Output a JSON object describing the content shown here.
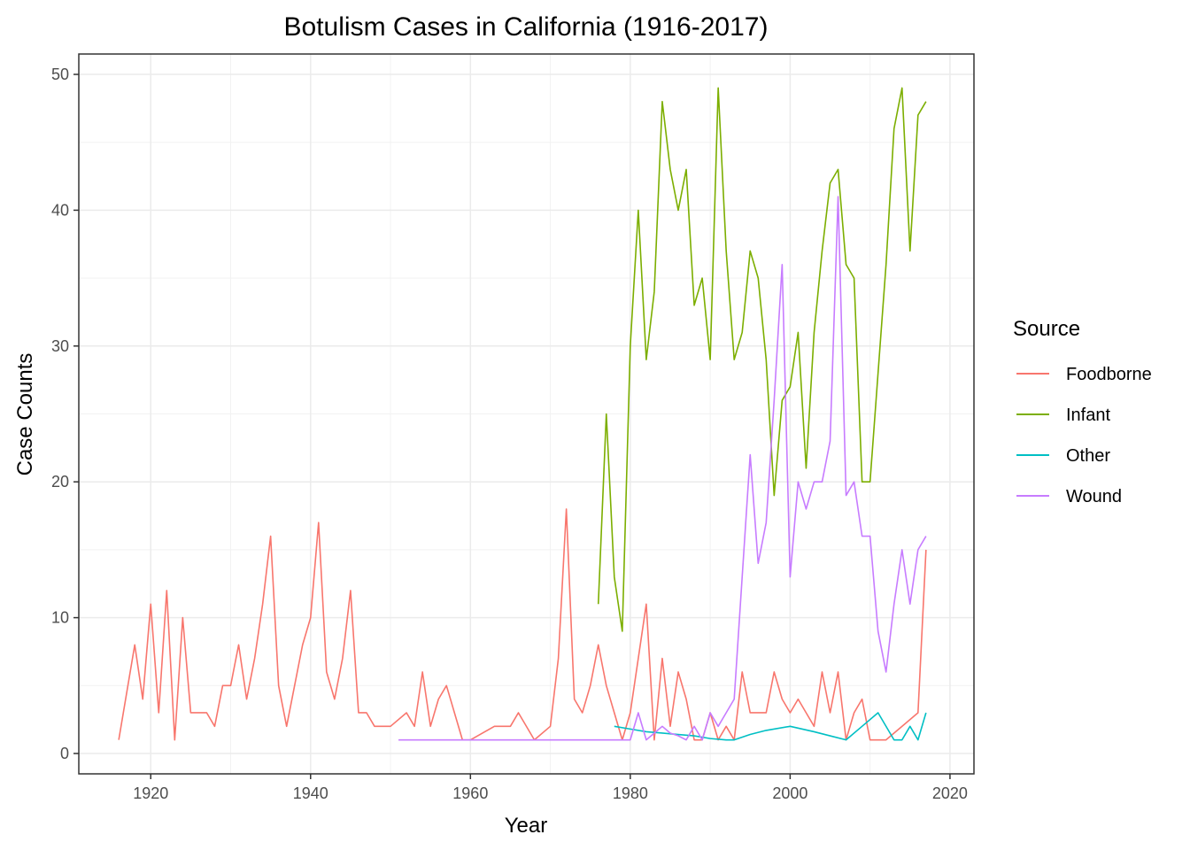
{
  "chart_data": {
    "type": "line",
    "title": "Botulism Cases in California (1916-2017)",
    "xlabel": "Year",
    "ylabel": "Case Counts",
    "xlim": [
      1911,
      2023
    ],
    "ylim": [
      -1.5,
      51.5
    ],
    "x_ticks": [
      1920,
      1940,
      1960,
      1980,
      2000,
      2020
    ],
    "y_ticks": [
      0,
      10,
      20,
      30,
      40,
      50
    ],
    "grid": true,
    "legend": {
      "title": "Source",
      "position": "right"
    },
    "series": [
      {
        "name": "Foodborne",
        "color": "#F8766D",
        "points": [
          [
            1916,
            1
          ],
          [
            1918,
            8
          ],
          [
            1919,
            4
          ],
          [
            1920,
            11
          ],
          [
            1921,
            3
          ],
          [
            1922,
            12
          ],
          [
            1923,
            1
          ],
          [
            1924,
            10
          ],
          [
            1925,
            3
          ],
          [
            1926,
            3
          ],
          [
            1927,
            3
          ],
          [
            1928,
            2
          ],
          [
            1929,
            5
          ],
          [
            1930,
            5
          ],
          [
            1931,
            8
          ],
          [
            1932,
            4
          ],
          [
            1933,
            7
          ],
          [
            1934,
            11
          ],
          [
            1935,
            16
          ],
          [
            1936,
            5
          ],
          [
            1937,
            2
          ],
          [
            1938,
            5
          ],
          [
            1939,
            8
          ],
          [
            1940,
            10
          ],
          [
            1941,
            17
          ],
          [
            1942,
            6
          ],
          [
            1943,
            4
          ],
          [
            1944,
            7
          ],
          [
            1945,
            12
          ],
          [
            1946,
            3
          ],
          [
            1947,
            3
          ],
          [
            1948,
            2
          ],
          [
            1949,
            2
          ],
          [
            1950,
            2
          ],
          [
            1952,
            3
          ],
          [
            1953,
            2
          ],
          [
            1954,
            6
          ],
          [
            1955,
            2
          ],
          [
            1956,
            4
          ],
          [
            1957,
            5
          ],
          [
            1958,
            3
          ],
          [
            1959,
            1
          ],
          [
            1960,
            1
          ],
          [
            1963,
            2
          ],
          [
            1965,
            2
          ],
          [
            1966,
            3
          ],
          [
            1968,
            1
          ],
          [
            1970,
            2
          ],
          [
            1971,
            7
          ],
          [
            1972,
            18
          ],
          [
            1973,
            4
          ],
          [
            1974,
            3
          ],
          [
            1975,
            5
          ],
          [
            1976,
            8
          ],
          [
            1977,
            5
          ],
          [
            1978,
            3
          ],
          [
            1979,
            1
          ],
          [
            1980,
            3
          ],
          [
            1981,
            7
          ],
          [
            1982,
            11
          ],
          [
            1983,
            1
          ],
          [
            1984,
            7
          ],
          [
            1985,
            2
          ],
          [
            1986,
            6
          ],
          [
            1987,
            4
          ],
          [
            1988,
            1
          ],
          [
            1989,
            1
          ],
          [
            1990,
            3
          ],
          [
            1991,
            1
          ],
          [
            1992,
            2
          ],
          [
            1993,
            1
          ],
          [
            1994,
            6
          ],
          [
            1995,
            3
          ],
          [
            1996,
            3
          ],
          [
            1997,
            3
          ],
          [
            1998,
            6
          ],
          [
            1999,
            4
          ],
          [
            2000,
            3
          ],
          [
            2001,
            4
          ],
          [
            2002,
            3
          ],
          [
            2003,
            2
          ],
          [
            2004,
            6
          ],
          [
            2005,
            3
          ],
          [
            2006,
            6
          ],
          [
            2007,
            1
          ],
          [
            2008,
            3
          ],
          [
            2009,
            4
          ],
          [
            2010,
            1
          ],
          [
            2011,
            1
          ],
          [
            2012,
            1
          ],
          [
            2016,
            3
          ],
          [
            2017,
            15
          ]
        ]
      },
      {
        "name": "Infant",
        "color": "#7CAE00",
        "points": [
          [
            1976,
            11
          ],
          [
            1977,
            25
          ],
          [
            1978,
            13
          ],
          [
            1979,
            9
          ],
          [
            1980,
            30
          ],
          [
            1981,
            40
          ],
          [
            1982,
            29
          ],
          [
            1983,
            34
          ],
          [
            1984,
            48
          ],
          [
            1985,
            43
          ],
          [
            1986,
            40
          ],
          [
            1987,
            43
          ],
          [
            1988,
            33
          ],
          [
            1989,
            35
          ],
          [
            1990,
            29
          ],
          [
            1991,
            49
          ],
          [
            1992,
            37
          ],
          [
            1993,
            29
          ],
          [
            1994,
            31
          ],
          [
            1995,
            37
          ],
          [
            1996,
            35
          ],
          [
            1997,
            29
          ],
          [
            1998,
            19
          ],
          [
            1999,
            26
          ],
          [
            2000,
            27
          ],
          [
            2001,
            31
          ],
          [
            2002,
            21
          ],
          [
            2003,
            31
          ],
          [
            2004,
            37
          ],
          [
            2005,
            42
          ],
          [
            2006,
            43
          ],
          [
            2007,
            36
          ],
          [
            2008,
            35
          ],
          [
            2009,
            20
          ],
          [
            2010,
            20
          ],
          [
            2011,
            28
          ],
          [
            2012,
            36
          ],
          [
            2013,
            46
          ],
          [
            2014,
            49
          ],
          [
            2015,
            37
          ],
          [
            2016,
            47
          ],
          [
            2017,
            48
          ]
        ]
      },
      {
        "name": "Other",
        "color": "#00BFC4",
        "points": [
          [
            1978,
            2
          ],
          [
            1980,
            1.8
          ],
          [
            1982,
            1.6
          ],
          [
            1984,
            1.5
          ],
          [
            1986,
            1.4
          ],
          [
            1988,
            1.3
          ],
          [
            1990,
            1.1
          ],
          [
            1992,
            1
          ],
          [
            1993,
            1
          ],
          [
            1995,
            1.4
          ],
          [
            1997,
            1.7
          ],
          [
            2000,
            2
          ],
          [
            2003,
            1.6
          ],
          [
            2005,
            1.3
          ],
          [
            2007,
            1
          ],
          [
            2009,
            2
          ],
          [
            2011,
            3
          ],
          [
            2013,
            1
          ],
          [
            2014,
            1
          ],
          [
            2015,
            2
          ],
          [
            2016,
            1
          ],
          [
            2017,
            3
          ]
        ]
      },
      {
        "name": "Wound",
        "color": "#C77CFF",
        "points": [
          [
            1951,
            1
          ],
          [
            1960,
            1
          ],
          [
            1970,
            1
          ],
          [
            1979,
            1
          ],
          [
            1980,
            1
          ],
          [
            1981,
            3
          ],
          [
            1982,
            1
          ],
          [
            1983,
            1.5
          ],
          [
            1984,
            2
          ],
          [
            1985,
            1.5
          ],
          [
            1986,
            1.3
          ],
          [
            1987,
            1
          ],
          [
            1988,
            2
          ],
          [
            1989,
            1
          ],
          [
            1990,
            3
          ],
          [
            1991,
            2
          ],
          [
            1992,
            3
          ],
          [
            1993,
            4
          ],
          [
            1994,
            13
          ],
          [
            1995,
            22
          ],
          [
            1996,
            14
          ],
          [
            1997,
            17
          ],
          [
            1998,
            26
          ],
          [
            1999,
            36
          ],
          [
            2000,
            13
          ],
          [
            2001,
            20
          ],
          [
            2002,
            18
          ],
          [
            2003,
            20
          ],
          [
            2004,
            20
          ],
          [
            2005,
            23
          ],
          [
            2006,
            41
          ],
          [
            2007,
            19
          ],
          [
            2008,
            20
          ],
          [
            2009,
            16
          ],
          [
            2010,
            16
          ],
          [
            2011,
            9
          ],
          [
            2012,
            6
          ],
          [
            2013,
            11
          ],
          [
            2014,
            15
          ],
          [
            2015,
            11
          ],
          [
            2016,
            15
          ],
          [
            2017,
            16
          ]
        ]
      }
    ]
  }
}
